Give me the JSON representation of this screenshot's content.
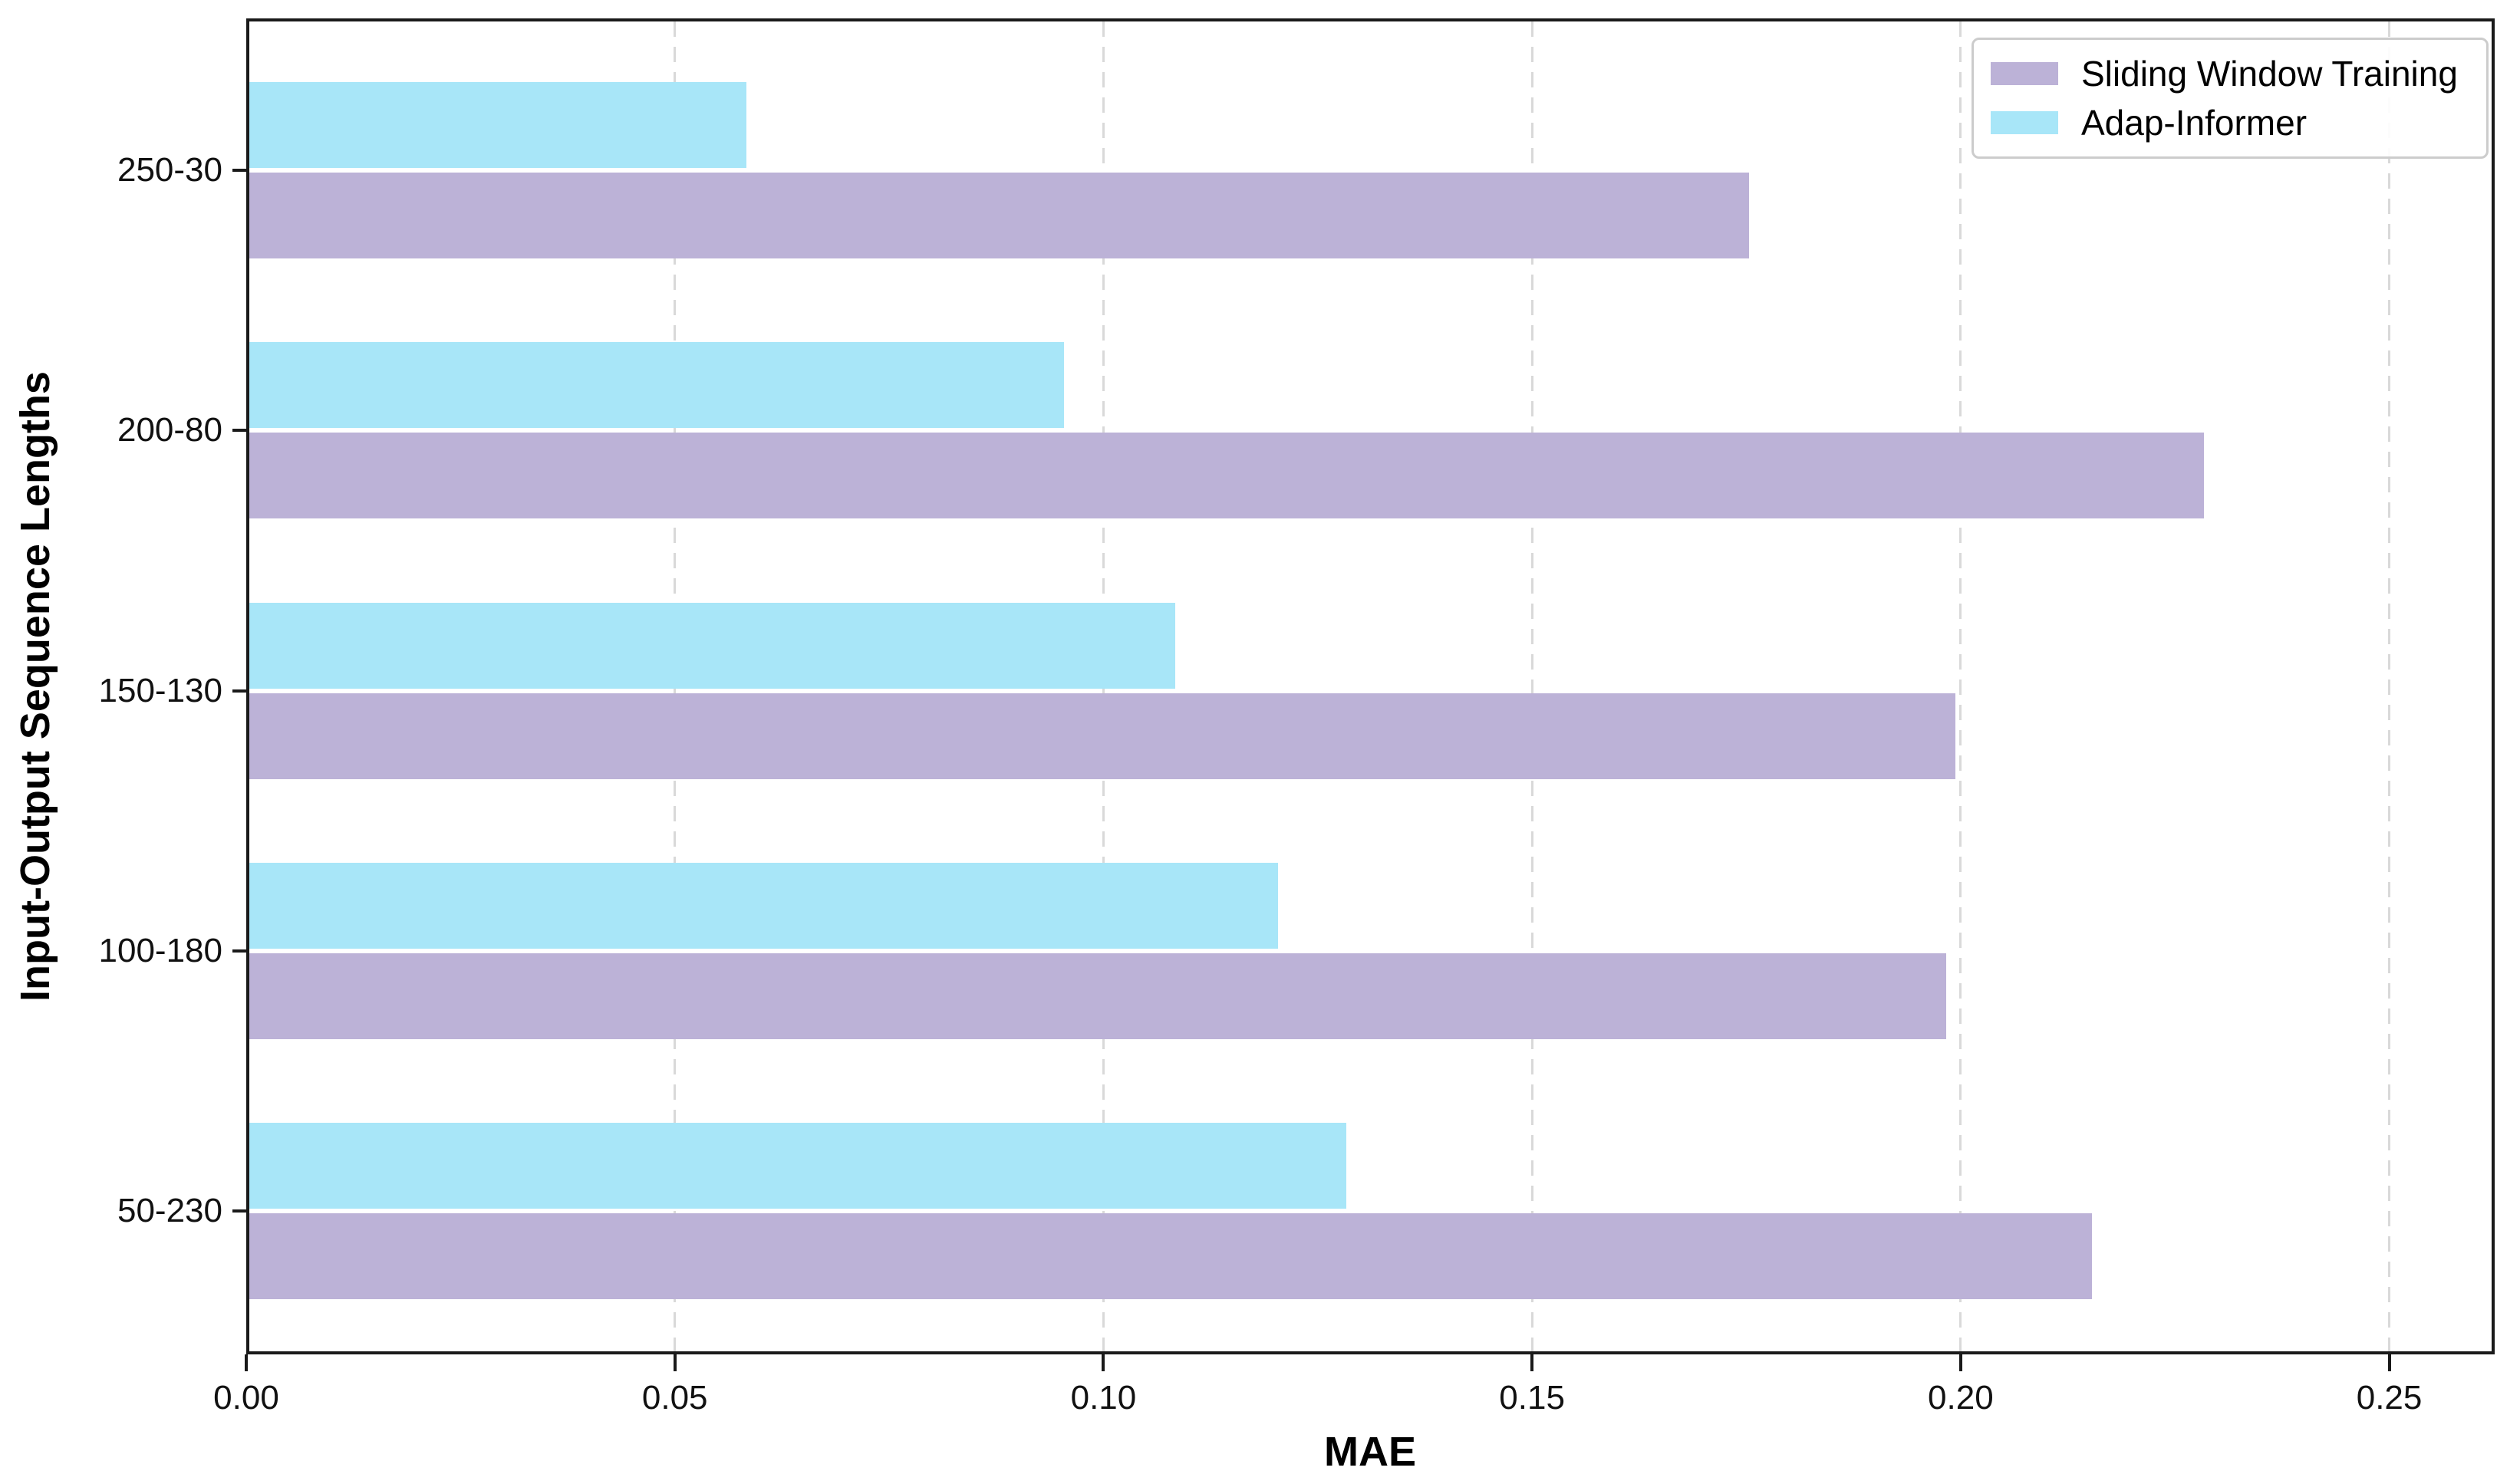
{
  "chart_data": {
    "type": "bar",
    "orientation": "horizontal",
    "title": "",
    "xlabel": "MAE",
    "ylabel": "Input-Output Sequence Lengths",
    "categories": [
      "250-30",
      "200-80",
      "150-130",
      "100-180",
      "50-230"
    ],
    "series": [
      {
        "name": "Sliding Window Training",
        "color": "#bcb2d7",
        "row_position": "bottom",
        "values": [
          0.175,
          0.228,
          0.199,
          0.198,
          0.215
        ]
      },
      {
        "name": "Adap-Informer",
        "color": "#a8e6f8",
        "row_position": "top",
        "values": [
          0.058,
          0.095,
          0.108,
          0.12,
          0.128
        ]
      }
    ],
    "xlim": [
      0,
      0.2623
    ],
    "xticks": [
      {
        "value": 0.0,
        "label": "0.00"
      },
      {
        "value": 0.05,
        "label": "0.05"
      },
      {
        "value": 0.1,
        "label": "0.10"
      },
      {
        "value": 0.15,
        "label": "0.15"
      },
      {
        "value": 0.2,
        "label": "0.20"
      },
      {
        "value": 0.25,
        "label": "0.25"
      }
    ],
    "grid": {
      "axis": "x",
      "style": "dashed",
      "color": "#d9d9d9"
    },
    "legend": {
      "position": "upper-right",
      "entries": [
        "Sliding Window Training",
        "Adap-Informer"
      ]
    }
  },
  "colors": {
    "spine": "#1a1a1a",
    "tick_label": "#111111",
    "legend_border": "#cccccc",
    "background": "#ffffff"
  }
}
